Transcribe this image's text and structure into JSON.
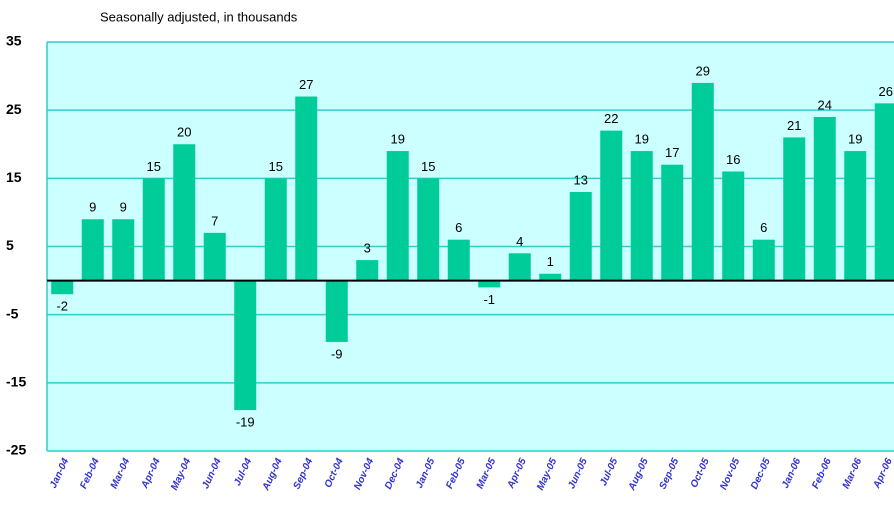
{
  "chart_data": {
    "type": "bar",
    "subtitle": "Seasonally adjusted, in thousands",
    "categories": [
      "Jan-04",
      "Feb-04",
      "Mar-04",
      "Apr-04",
      "May-04",
      "Jun-04",
      "Jul-04",
      "Aug-04",
      "Sep-04",
      "Oct-04",
      "Nov-04",
      "Dec-04",
      "Jan-05",
      "Feb-05",
      "Mar-05",
      "Apr-05",
      "May-05",
      "Jun-05",
      "Jul-05",
      "Aug-05",
      "Sep-05",
      "Oct-05",
      "Nov-05",
      "Dec-05",
      "Jan-06",
      "Feb-06",
      "Mar-06",
      "Apr-06"
    ],
    "values": [
      -2,
      9,
      9,
      15,
      20,
      7,
      -19,
      15,
      27,
      -9,
      3,
      19,
      15,
      6,
      -1,
      4,
      1,
      13,
      22,
      19,
      17,
      29,
      16,
      6,
      21,
      24,
      19,
      26
    ],
    "color": "#00cc99",
    "ylim": [
      -25,
      35
    ],
    "yticks": [
      35,
      25,
      15,
      5,
      -5,
      -15,
      -25
    ],
    "grid": true
  }
}
